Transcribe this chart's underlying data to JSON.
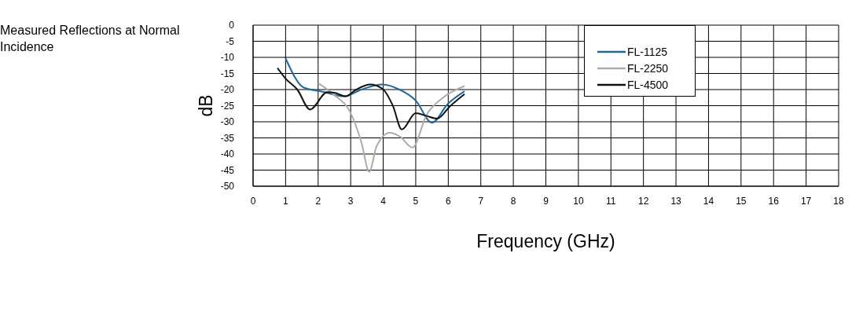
{
  "chart_data": {
    "type": "line",
    "title": "Measured Reflections at Normal Incidence",
    "xlabel": "Frequency (GHz)",
    "ylabel": "dB",
    "xlim": [
      0,
      18
    ],
    "xticks": [
      0,
      1,
      2,
      3,
      4,
      5,
      6,
      7,
      8,
      9,
      10,
      11,
      12,
      13,
      14,
      15,
      16,
      17,
      18
    ],
    "ylim": [
      -50,
      0
    ],
    "yticks": [
      -50,
      -45,
      -40,
      -35,
      -30,
      -25,
      -20,
      -15,
      -10,
      -5,
      0
    ],
    "grid": true,
    "legend": "top",
    "marker": "none",
    "line_style": "solid",
    "series": [
      {
        "name": "FL-1125",
        "color": "#1f6a9a",
        "x": [
          1.0,
          1.56,
          2.12,
          2.8,
          3.33,
          3.97,
          4.5,
          5.0,
          5.5,
          5.98,
          6.5
        ],
        "values": [
          -10.3,
          -19.4,
          -20.6,
          -22.1,
          -20,
          -18.4,
          -20,
          -23.4,
          -30.3,
          -24.5,
          -20.5
        ]
      },
      {
        "name": "FL-2250",
        "color": "#b0aca4",
        "x": [
          2.0,
          2.5,
          3.0,
          3.33,
          3.57,
          3.8,
          4.2,
          4.53,
          4.9,
          5.33,
          5.8,
          6.5
        ],
        "values": [
          -18,
          -21.7,
          -27.3,
          -36.4,
          -45.5,
          -37.5,
          -33.4,
          -34.7,
          -38,
          -27.9,
          -22.8,
          -18.9
        ]
      },
      {
        "name": "FL-4500",
        "color": "#111111",
        "x": [
          0.75,
          1.0,
          1.36,
          1.75,
          2.28,
          2.5,
          2.85,
          3.17,
          3.6,
          3.97,
          4.3,
          4.57,
          5.0,
          5.34,
          5.66,
          6.06,
          6.5
        ],
        "values": [
          -13.3,
          -16.6,
          -20,
          -26.2,
          -20.8,
          -21,
          -22.1,
          -20,
          -18.4,
          -19.7,
          -25.1,
          -32.4,
          -27.3,
          -28.2,
          -29,
          -25.1,
          -21.4
        ]
      }
    ]
  }
}
